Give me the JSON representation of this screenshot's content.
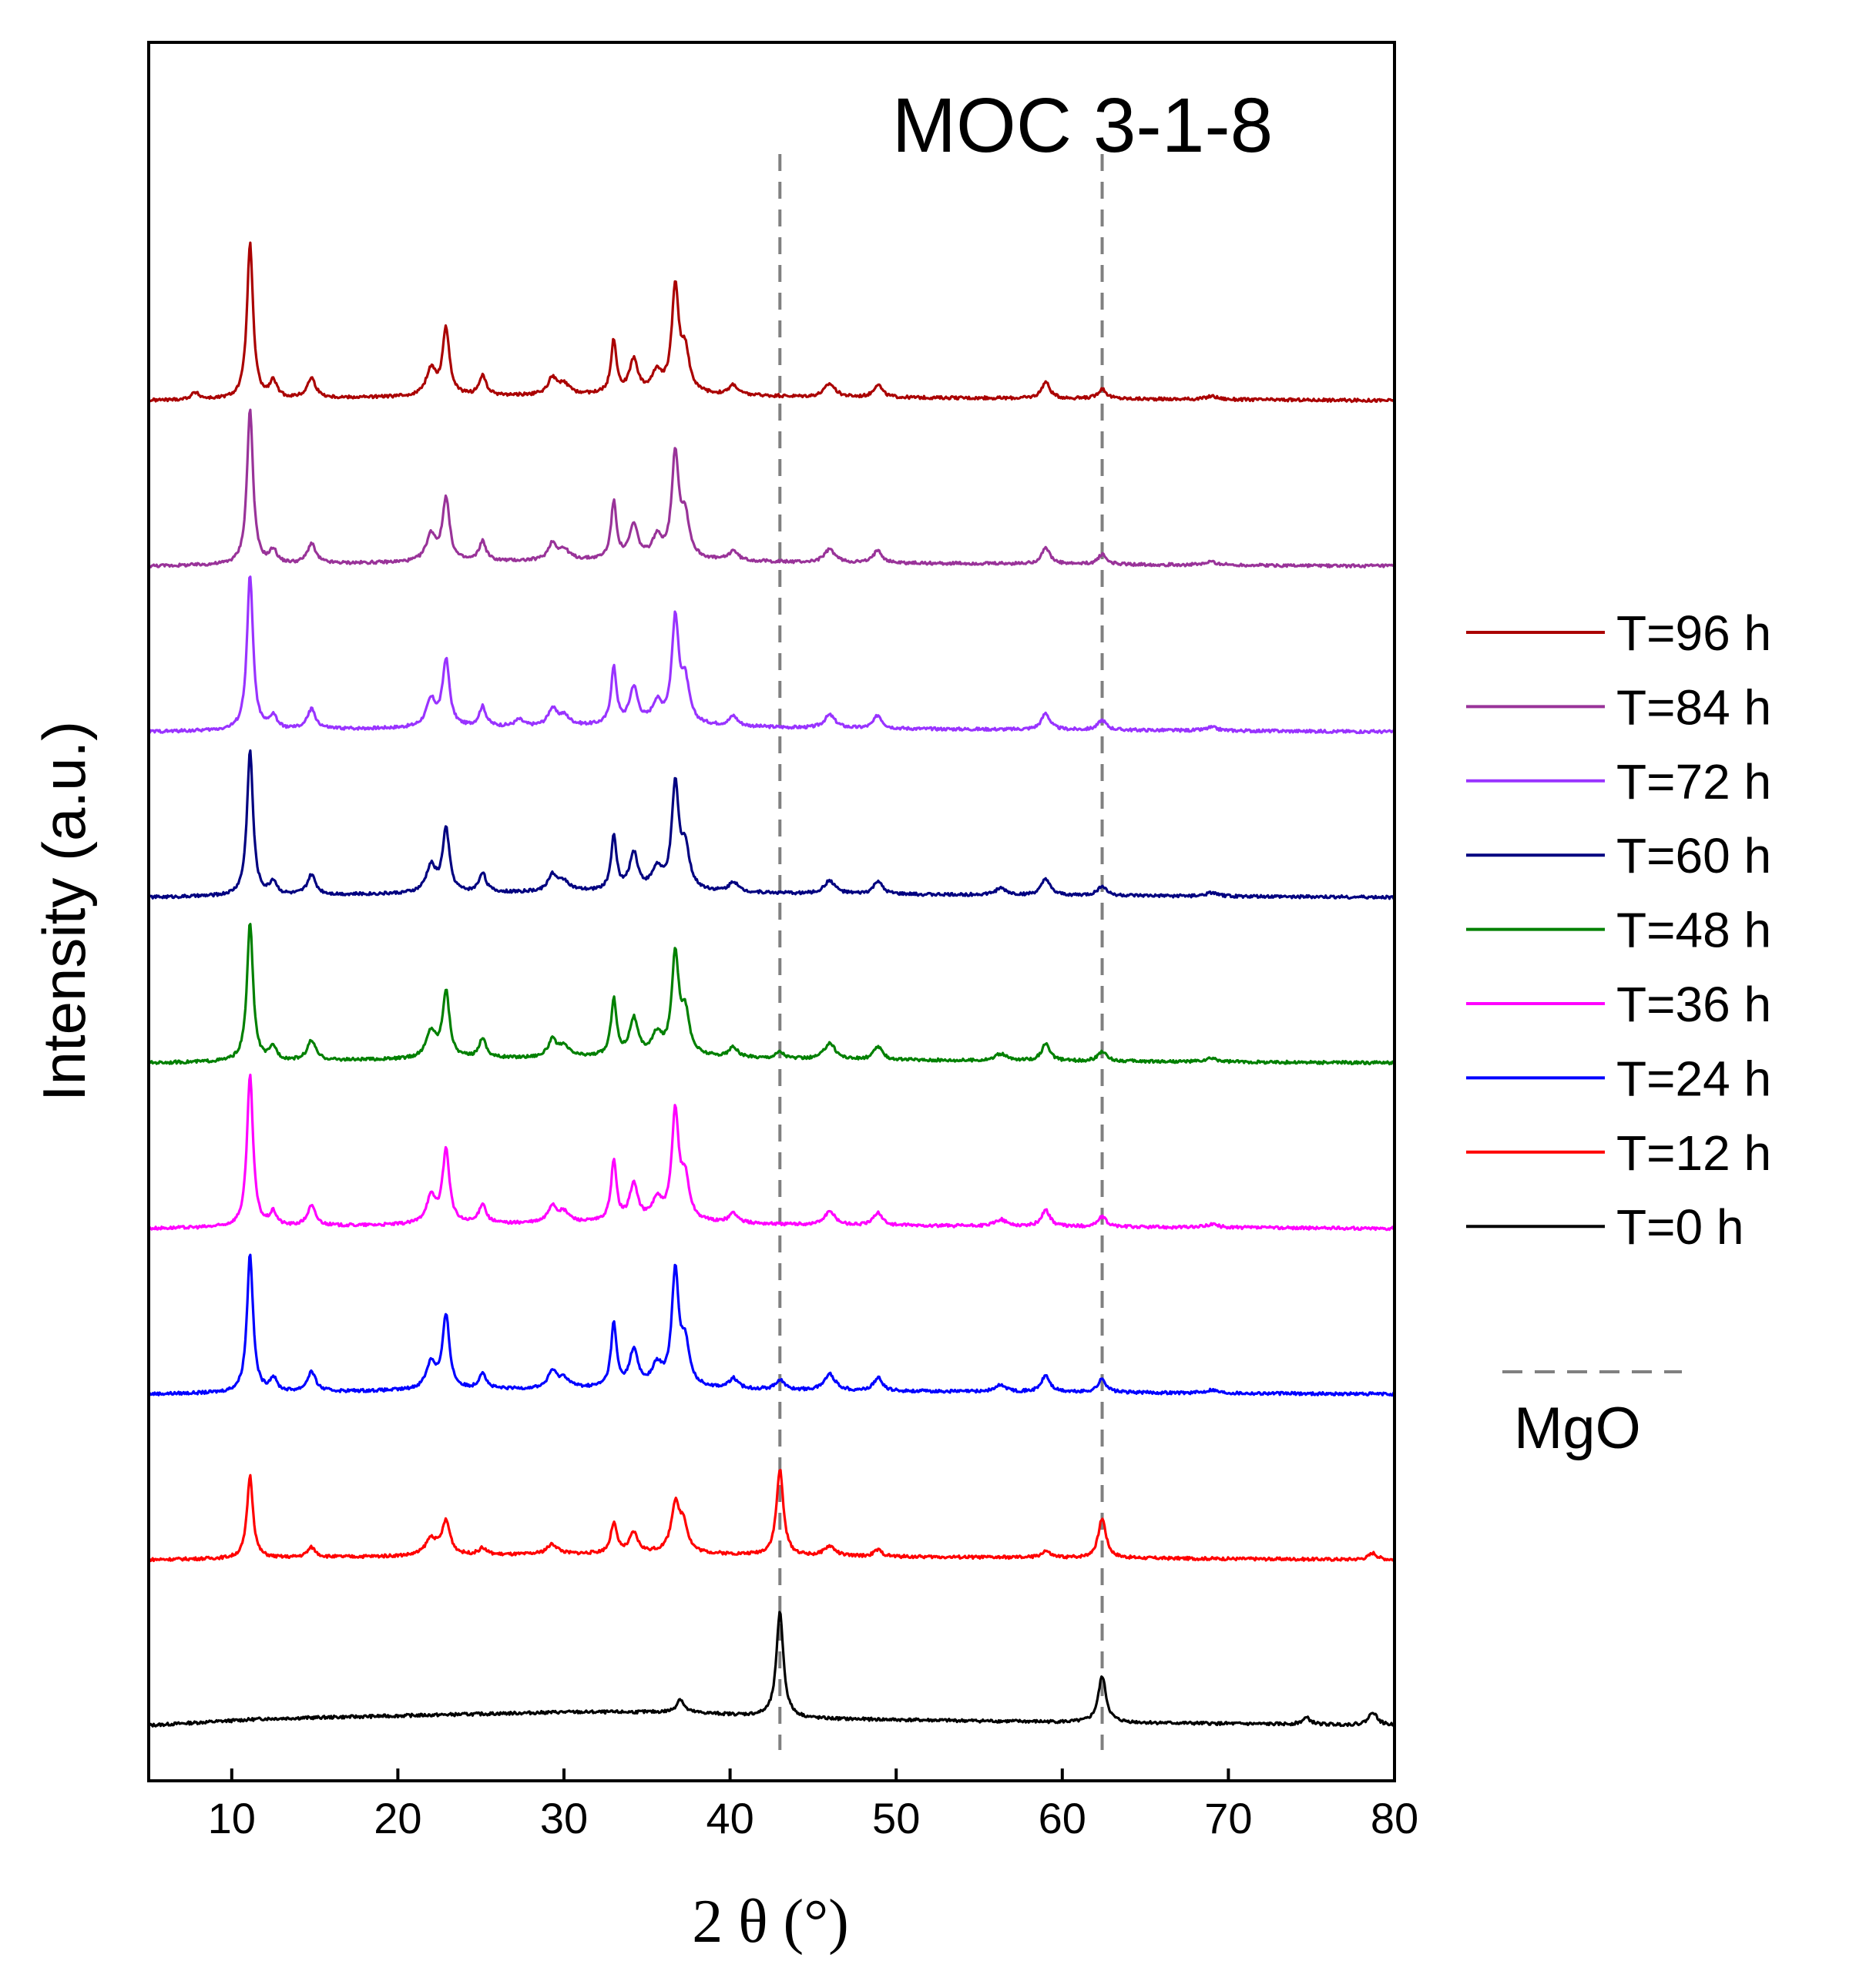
{
  "chart_data": {
    "type": "line",
    "title": "MOC 3-1-8",
    "xlabel": "2 θ (°)",
    "ylabel": "Intensity (a.u.)",
    "xlim": [
      5,
      80
    ],
    "xticks": [
      10,
      20,
      30,
      40,
      50,
      60,
      70,
      80
    ],
    "stacked_offsets": true,
    "reference_lines": {
      "label": "MgO",
      "x": [
        43.0,
        62.4
      ],
      "color": "#808080",
      "style": "dashed"
    },
    "legend_position": "right",
    "series": [
      {
        "name": "T=0 h",
        "color": "#000000",
        "offset": 0,
        "peaks": [
          [
            37.0,
            4,
            0.25
          ],
          [
            43.0,
            32,
            0.25
          ],
          [
            62.4,
            14,
            0.28
          ],
          [
            74.7,
            2,
            0.3
          ],
          [
            78.7,
            4,
            0.3
          ]
        ],
        "baseline": [
          [
            5,
            0
          ],
          [
            12,
            2
          ],
          [
            30,
            4
          ],
          [
            37,
            4
          ],
          [
            45,
            2
          ],
          [
            60,
            1
          ],
          [
            80,
            0
          ]
        ]
      },
      {
        "name": "T=12 h",
        "color": "#ff0000",
        "offset": 50,
        "peaks": [
          [
            11.1,
            25,
            0.22
          ],
          [
            14.8,
            3,
            0.3
          ],
          [
            22.0,
            5,
            0.4
          ],
          [
            22.9,
            10,
            0.3
          ],
          [
            25.1,
            2,
            0.3
          ],
          [
            29.3,
            3,
            0.4
          ],
          [
            33.0,
            9,
            0.22
          ],
          [
            34.2,
            6,
            0.3
          ],
          [
            36.7,
            14,
            0.3
          ],
          [
            37.2,
            8,
            0.3
          ],
          [
            43.0,
            26,
            0.25
          ],
          [
            46.0,
            3,
            0.4
          ],
          [
            48.9,
            2,
            0.3
          ],
          [
            59.0,
            2,
            0.3
          ],
          [
            62.4,
            12,
            0.28
          ],
          [
            78.7,
            2,
            0.3
          ]
        ],
        "baseline": [
          [
            5,
            0
          ],
          [
            20,
            1
          ],
          [
            36,
            2
          ],
          [
            45,
            1
          ],
          [
            80,
            0
          ]
        ]
      },
      {
        "name": "T=24 h",
        "color": "#0000ff",
        "offset": 100,
        "peaks": [
          [
            11.1,
            42,
            0.22
          ],
          [
            12.5,
            4,
            0.25
          ],
          [
            14.8,
            6,
            0.3
          ],
          [
            22.0,
            8,
            0.35
          ],
          [
            22.9,
            22,
            0.25
          ],
          [
            25.1,
            5,
            0.25
          ],
          [
            29.3,
            5,
            0.3
          ],
          [
            30.0,
            3,
            0.4
          ],
          [
            33.0,
            19,
            0.2
          ],
          [
            34.2,
            11,
            0.3
          ],
          [
            35.6,
            6,
            0.35
          ],
          [
            36.7,
            34,
            0.25
          ],
          [
            37.3,
            12,
            0.3
          ],
          [
            40.2,
            3,
            0.3
          ],
          [
            43.0,
            3,
            0.3
          ],
          [
            46.0,
            5,
            0.4
          ],
          [
            48.9,
            4,
            0.3
          ],
          [
            56.3,
            2,
            0.4
          ],
          [
            59.0,
            5,
            0.3
          ],
          [
            62.4,
            4,
            0.3
          ],
          [
            69.0,
            1,
            0.4
          ]
        ],
        "baseline": [
          [
            5,
            0
          ],
          [
            20,
            1
          ],
          [
            36,
            2
          ],
          [
            45,
            1
          ],
          [
            80,
            0
          ]
        ]
      },
      {
        "name": "T=36 h",
        "color": "#ff00ff",
        "offset": 150,
        "peaks": [
          [
            11.1,
            46,
            0.22
          ],
          [
            12.5,
            4,
            0.25
          ],
          [
            14.8,
            6,
            0.3
          ],
          [
            22.0,
            8,
            0.35
          ],
          [
            22.9,
            22,
            0.25
          ],
          [
            25.1,
            6,
            0.25
          ],
          [
            29.3,
            5,
            0.3
          ],
          [
            30.0,
            3,
            0.4
          ],
          [
            33.0,
            18,
            0.2
          ],
          [
            34.2,
            11,
            0.3
          ],
          [
            35.6,
            6,
            0.35
          ],
          [
            36.7,
            32,
            0.25
          ],
          [
            37.3,
            12,
            0.3
          ],
          [
            40.2,
            3,
            0.3
          ],
          [
            46.0,
            4,
            0.4
          ],
          [
            48.9,
            4,
            0.3
          ],
          [
            56.3,
            2,
            0.4
          ],
          [
            59.0,
            5,
            0.3
          ],
          [
            62.4,
            3,
            0.3
          ],
          [
            69.0,
            1,
            0.4
          ]
        ],
        "baseline": [
          [
            5,
            0
          ],
          [
            20,
            1
          ],
          [
            36,
            2
          ],
          [
            45,
            1
          ],
          [
            80,
            0
          ]
        ]
      },
      {
        "name": "T=48 h",
        "color": "#008000",
        "offset": 200,
        "peaks": [
          [
            11.1,
            42,
            0.22
          ],
          [
            12.5,
            4,
            0.25
          ],
          [
            14.8,
            6,
            0.3
          ],
          [
            22.0,
            8,
            0.35
          ],
          [
            22.9,
            20,
            0.25
          ],
          [
            25.1,
            6,
            0.25
          ],
          [
            29.3,
            5,
            0.3
          ],
          [
            30.0,
            3,
            0.4
          ],
          [
            33.0,
            17,
            0.2
          ],
          [
            34.2,
            11,
            0.3
          ],
          [
            35.6,
            6,
            0.35
          ],
          [
            36.7,
            30,
            0.25
          ],
          [
            37.3,
            12,
            0.3
          ],
          [
            40.2,
            3,
            0.3
          ],
          [
            43.0,
            2,
            0.3
          ],
          [
            46.0,
            5,
            0.4
          ],
          [
            48.9,
            4,
            0.3
          ],
          [
            56.3,
            2,
            0.4
          ],
          [
            59.0,
            5,
            0.3
          ],
          [
            62.4,
            3,
            0.3
          ],
          [
            69.0,
            1,
            0.4
          ]
        ],
        "baseline": [
          [
            5,
            0
          ],
          [
            20,
            1
          ],
          [
            36,
            2
          ],
          [
            45,
            1
          ],
          [
            80,
            0
          ]
        ]
      },
      {
        "name": "T=60 h",
        "color": "#000080",
        "offset": 250,
        "peaks": [
          [
            11.1,
            44,
            0.22
          ],
          [
            12.5,
            4,
            0.25
          ],
          [
            14.8,
            6,
            0.3
          ],
          [
            22.0,
            8,
            0.35
          ],
          [
            22.9,
            19,
            0.25
          ],
          [
            25.1,
            6,
            0.25
          ],
          [
            29.3,
            5,
            0.3
          ],
          [
            30.0,
            3,
            0.4
          ],
          [
            33.0,
            16,
            0.2
          ],
          [
            34.2,
            11,
            0.3
          ],
          [
            35.6,
            6,
            0.35
          ],
          [
            36.7,
            31,
            0.25
          ],
          [
            37.3,
            12,
            0.3
          ],
          [
            40.2,
            3,
            0.3
          ],
          [
            46.0,
            4,
            0.4
          ],
          [
            48.9,
            4,
            0.3
          ],
          [
            56.3,
            2,
            0.4
          ],
          [
            59.0,
            5,
            0.3
          ],
          [
            62.4,
            3,
            0.3
          ],
          [
            69.0,
            1,
            0.4
          ]
        ],
        "baseline": [
          [
            5,
            0
          ],
          [
            20,
            1
          ],
          [
            36,
            2
          ],
          [
            45,
            1
          ],
          [
            80,
            0
          ]
        ]
      },
      {
        "name": "T=72 h",
        "color": "#9933ff",
        "offset": 300,
        "peaks": [
          [
            11.1,
            47,
            0.22
          ],
          [
            12.5,
            4,
            0.25
          ],
          [
            14.8,
            6,
            0.3
          ],
          [
            22.0,
            8,
            0.35
          ],
          [
            22.9,
            20,
            0.25
          ],
          [
            25.1,
            6,
            0.25
          ],
          [
            27.3,
            2,
            0.3
          ],
          [
            29.3,
            5,
            0.3
          ],
          [
            30.0,
            3,
            0.4
          ],
          [
            33.0,
            17,
            0.2
          ],
          [
            34.2,
            11,
            0.3
          ],
          [
            35.6,
            6,
            0.35
          ],
          [
            36.7,
            31,
            0.25
          ],
          [
            37.3,
            12,
            0.3
          ],
          [
            40.2,
            3,
            0.3
          ],
          [
            46.0,
            4,
            0.4
          ],
          [
            48.9,
            4,
            0.3
          ],
          [
            59.0,
            5,
            0.3
          ],
          [
            62.4,
            3,
            0.3
          ],
          [
            69.0,
            1,
            0.4
          ]
        ],
        "baseline": [
          [
            5,
            0
          ],
          [
            20,
            1
          ],
          [
            36,
            2
          ],
          [
            45,
            1
          ],
          [
            80,
            0
          ]
        ]
      },
      {
        "name": "T=84 h",
        "color": "#993399",
        "offset": 350,
        "peaks": [
          [
            11.1,
            47,
            0.22
          ],
          [
            12.5,
            4,
            0.25
          ],
          [
            14.8,
            6,
            0.3
          ],
          [
            22.0,
            8,
            0.35
          ],
          [
            22.9,
            19,
            0.25
          ],
          [
            25.1,
            6,
            0.25
          ],
          [
            29.3,
            5,
            0.3
          ],
          [
            30.0,
            3,
            0.4
          ],
          [
            33.0,
            17,
            0.2
          ],
          [
            34.2,
            10,
            0.3
          ],
          [
            35.6,
            6,
            0.35
          ],
          [
            36.7,
            31,
            0.25
          ],
          [
            37.3,
            12,
            0.3
          ],
          [
            40.2,
            3,
            0.3
          ],
          [
            46.0,
            4,
            0.4
          ],
          [
            48.9,
            4,
            0.3
          ],
          [
            59.0,
            5,
            0.3
          ],
          [
            62.4,
            3,
            0.3
          ],
          [
            69.0,
            1,
            0.4
          ]
        ],
        "baseline": [
          [
            5,
            0
          ],
          [
            20,
            1
          ],
          [
            36,
            2
          ],
          [
            45,
            1
          ],
          [
            80,
            0
          ]
        ]
      },
      {
        "name": "T=96 h",
        "color": "#aa0000",
        "offset": 400,
        "peaks": [
          [
            7.8,
            2,
            0.3
          ],
          [
            11.1,
            47,
            0.22
          ],
          [
            12.5,
            5,
            0.25
          ],
          [
            14.8,
            6,
            0.3
          ],
          [
            22.0,
            8,
            0.35
          ],
          [
            22.9,
            20,
            0.25
          ],
          [
            25.1,
            6,
            0.25
          ],
          [
            29.3,
            5,
            0.3
          ],
          [
            30.0,
            3,
            0.4
          ],
          [
            33.0,
            16,
            0.2
          ],
          [
            34.2,
            10,
            0.3
          ],
          [
            35.6,
            6,
            0.35
          ],
          [
            36.7,
            31,
            0.25
          ],
          [
            37.3,
            12,
            0.3
          ],
          [
            40.2,
            3,
            0.3
          ],
          [
            46.0,
            4,
            0.4
          ],
          [
            48.9,
            4,
            0.3
          ],
          [
            59.0,
            5,
            0.3
          ],
          [
            62.4,
            3,
            0.3
          ],
          [
            69.0,
            1,
            0.4
          ]
        ],
        "baseline": [
          [
            5,
            0
          ],
          [
            20,
            1
          ],
          [
            36,
            2
          ],
          [
            45,
            1
          ],
          [
            80,
            0
          ]
        ]
      }
    ]
  }
}
